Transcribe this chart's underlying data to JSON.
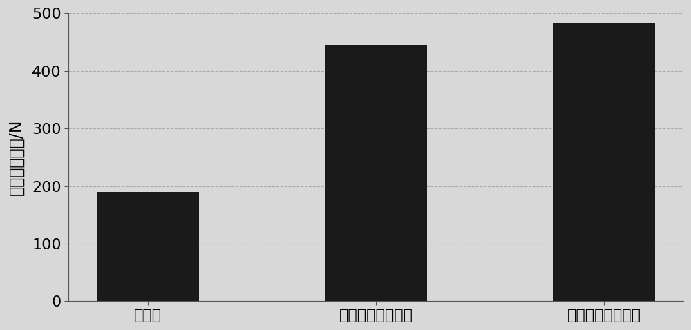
{
  "categories": [
    "未处理",
    "涂环氧树脂浸润剂",
    "涂新型纤维浸润剂"
  ],
  "values": [
    190,
    445,
    483
  ],
  "bar_color": "#1a1a1a",
  "ylabel": "纤维束拉拔力/N",
  "ylim": [
    0,
    500
  ],
  "yticks": [
    0,
    100,
    200,
    300,
    400,
    500
  ],
  "background_color": "#d8d8d8",
  "grid_color": "#aaaaaa",
  "bar_width": 0.45,
  "tick_fontsize": 16,
  "label_fontsize": 17
}
